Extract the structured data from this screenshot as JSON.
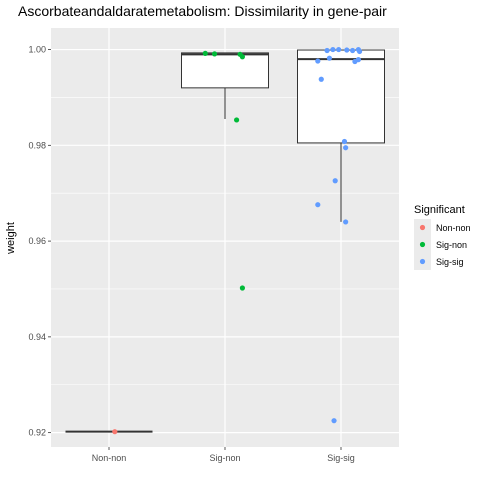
{
  "chart_data": {
    "type": "boxplot",
    "title": "Ascorbateandaldaratemetabolism: Dissimilarity in gene-pair",
    "xlabel": "",
    "ylabel": "weight",
    "ylim": [
      0.917,
      1.0045
    ],
    "yticks": [
      0.92,
      0.94,
      0.96,
      0.98,
      1.0
    ],
    "ytick_labels": [
      "0.92",
      "0.94",
      "0.96",
      "0.98",
      "1.00"
    ],
    "categories": [
      "Non-non",
      "Sig-non",
      "Sig-sig"
    ],
    "grid": true,
    "legend": {
      "title": "Significant",
      "placement": "right",
      "entries": [
        "Non-non",
        "Sig-non",
        "Sig-sig"
      ]
    },
    "colors": {
      "Non-non": "#F8766D",
      "Sig-non": "#00BA38",
      "Sig-sig": "#619CFF",
      "panel": "#EBEBEB",
      "grid": "#FFFFFF"
    },
    "boxes": [
      {
        "category": "Non-non",
        "q1": 0.9202,
        "median": 0.9202,
        "q3": 0.9202,
        "whisker_low": 0.9202,
        "whisker_high": 0.9202
      },
      {
        "category": "Sig-non",
        "q1": 0.992,
        "median": 0.999,
        "q3": 0.9993,
        "whisker_low": 0.9855,
        "whisker_high": 0.9993
      },
      {
        "category": "Sig-sig",
        "q1": 0.9805,
        "median": 0.998,
        "q3": 0.9999,
        "whisker_low": 0.964,
        "whisker_high": 0.9999
      }
    ],
    "points": [
      {
        "category": "Non-non",
        "jitter": 0.05,
        "y": 0.9202
      },
      {
        "category": "Sig-non",
        "jitter": -0.17,
        "y": 0.9992
      },
      {
        "category": "Sig-non",
        "jitter": -0.09,
        "y": 0.9991
      },
      {
        "category": "Sig-non",
        "jitter": 0.13,
        "y": 0.999
      },
      {
        "category": "Sig-non",
        "jitter": 0.15,
        "y": 0.9985
      },
      {
        "category": "Sig-non",
        "jitter": 0.1,
        "y": 0.9853
      },
      {
        "category": "Sig-non",
        "jitter": 0.15,
        "y": 0.9502
      },
      {
        "category": "Sig-sig",
        "jitter": -0.12,
        "y": 0.9998
      },
      {
        "category": "Sig-sig",
        "jitter": -0.07,
        "y": 1.0
      },
      {
        "category": "Sig-sig",
        "jitter": -0.02,
        "y": 1.0
      },
      {
        "category": "Sig-sig",
        "jitter": 0.05,
        "y": 0.9999
      },
      {
        "category": "Sig-sig",
        "jitter": 0.1,
        "y": 0.9998
      },
      {
        "category": "Sig-sig",
        "jitter": 0.15,
        "y": 1.0
      },
      {
        "category": "Sig-sig",
        "jitter": 0.16,
        "y": 0.9996
      },
      {
        "category": "Sig-sig",
        "jitter": -0.1,
        "y": 0.9982
      },
      {
        "category": "Sig-sig",
        "jitter": -0.2,
        "y": 0.9976
      },
      {
        "category": "Sig-sig",
        "jitter": 0.12,
        "y": 0.9975
      },
      {
        "category": "Sig-sig",
        "jitter": 0.15,
        "y": 0.9979
      },
      {
        "category": "Sig-sig",
        "jitter": -0.17,
        "y": 0.9938
      },
      {
        "category": "Sig-sig",
        "jitter": 0.03,
        "y": 0.9808
      },
      {
        "category": "Sig-sig",
        "jitter": 0.04,
        "y": 0.9795
      },
      {
        "category": "Sig-sig",
        "jitter": -0.05,
        "y": 0.9726
      },
      {
        "category": "Sig-sig",
        "jitter": -0.2,
        "y": 0.9676
      },
      {
        "category": "Sig-sig",
        "jitter": 0.04,
        "y": 0.964
      },
      {
        "category": "Sig-sig",
        "jitter": -0.06,
        "y": 0.9225
      }
    ]
  }
}
